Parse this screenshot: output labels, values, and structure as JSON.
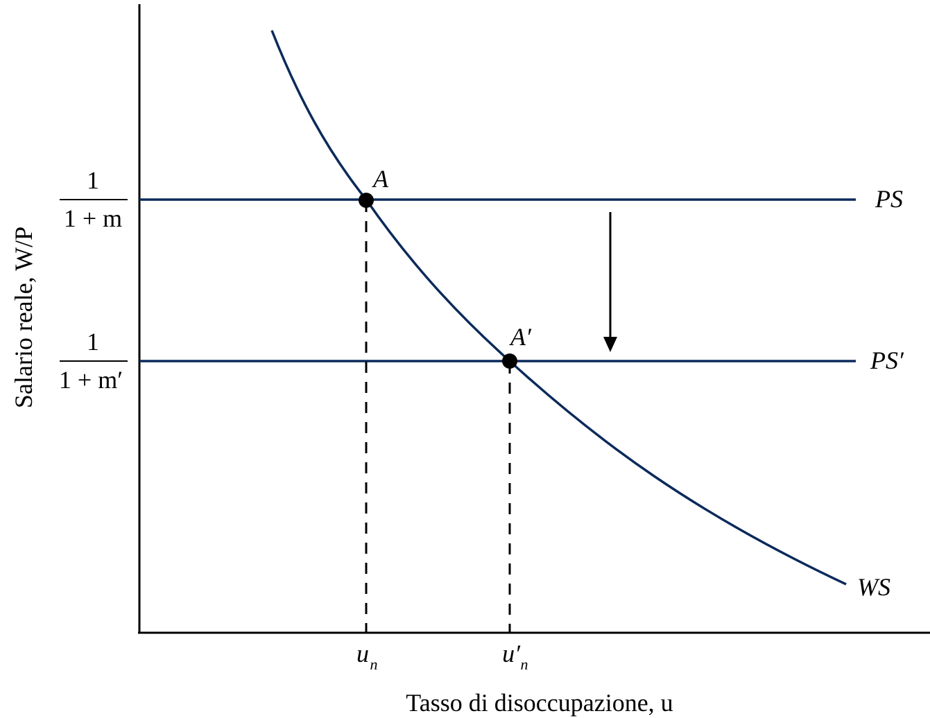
{
  "axes": {
    "y_label": "Salario reale, W/P",
    "x_label": "Tasso di disoccupazione, u"
  },
  "y_ticks": {
    "ps": {
      "numerator": "1",
      "denominator": "1 + m"
    },
    "ps_prime": {
      "numerator": "1",
      "denominator": "1 + m′"
    }
  },
  "x_ticks": {
    "un": {
      "base": "u",
      "sub": "n"
    },
    "un_prime": {
      "base": "u′",
      "sub": "n"
    }
  },
  "curves": {
    "ps": "PS",
    "ps_prime": "PS′",
    "ws": "WS"
  },
  "points": {
    "a": "A",
    "a_prime": "A′"
  },
  "colors": {
    "curve": "#0b2a5b",
    "axis": "#000000",
    "point": "#000000"
  }
}
